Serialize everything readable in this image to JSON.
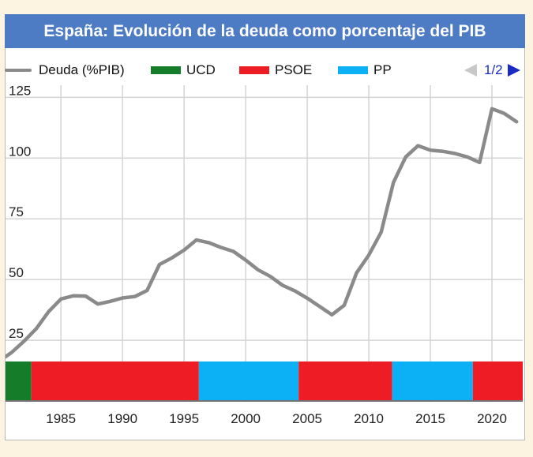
{
  "title": "España: Evolución de la deuda como porcentaje del PIB",
  "legend": {
    "line_label": "Deuda (%PIB)",
    "parties": [
      {
        "name": "UCD",
        "color": "#157d2a"
      },
      {
        "name": "PSOE",
        "color": "#ee1c25"
      },
      {
        "name": "PP",
        "color": "#0bb0f5"
      }
    ]
  },
  "pager": {
    "label": "1/2"
  },
  "colors": {
    "line": "#8a8a8a",
    "grid": "#d4d4d4",
    "axis": "#444444"
  },
  "chart_data": {
    "type": "line",
    "title": "España: Evolución de la deuda como porcentaje del PIB",
    "xlabel": "",
    "ylabel": "",
    "xlim": [
      1980.5,
      2022.5
    ],
    "ylim": [
      0,
      130
    ],
    "x_ticks": [
      1985,
      1990,
      1995,
      2000,
      2005,
      2010,
      2015,
      2020
    ],
    "y_ticks": [
      25,
      50,
      75,
      100,
      125
    ],
    "grid": true,
    "series": [
      {
        "name": "Deuda (%PIB)",
        "x": [
          1980,
          1981,
          1982,
          1983,
          1984,
          1985,
          1986,
          1987,
          1988,
          1989,
          1990,
          1991,
          1992,
          1993,
          1994,
          1995,
          1996,
          1997,
          1998,
          1999,
          2000,
          2001,
          2002,
          2003,
          2004,
          2005,
          2006,
          2007,
          2008,
          2009,
          2010,
          2011,
          2012,
          2013,
          2014,
          2015,
          2016,
          2017,
          2018,
          2019,
          2020,
          2021,
          2022
        ],
        "values": [
          16.5,
          20.0,
          24.6,
          29.8,
          36.8,
          42.0,
          43.3,
          43.2,
          39.9,
          41.0,
          42.4,
          43.0,
          45.5,
          56.2,
          58.9,
          62.1,
          66.3,
          65.2,
          63.2,
          61.6,
          58.0,
          54.0,
          51.3,
          47.6,
          45.3,
          42.3,
          38.9,
          35.5,
          39.4,
          52.7,
          60.1,
          69.5,
          90.0,
          100.5,
          105.1,
          103.3,
          102.8,
          101.9,
          100.5,
          98.2,
          120.3,
          118.4,
          115.0
        ]
      }
    ],
    "government_bands": [
      {
        "party": "UCD",
        "start": 1980.5,
        "end": 1982.6
      },
      {
        "party": "PSOE",
        "start": 1982.6,
        "end": 1996.2
      },
      {
        "party": "PP",
        "start": 1996.2,
        "end": 2004.3
      },
      {
        "party": "PSOE",
        "start": 2004.3,
        "end": 2011.9
      },
      {
        "party": "PP",
        "start": 2011.9,
        "end": 2018.45
      },
      {
        "party": "PSOE",
        "start": 2018.45,
        "end": 2022.5
      }
    ]
  }
}
